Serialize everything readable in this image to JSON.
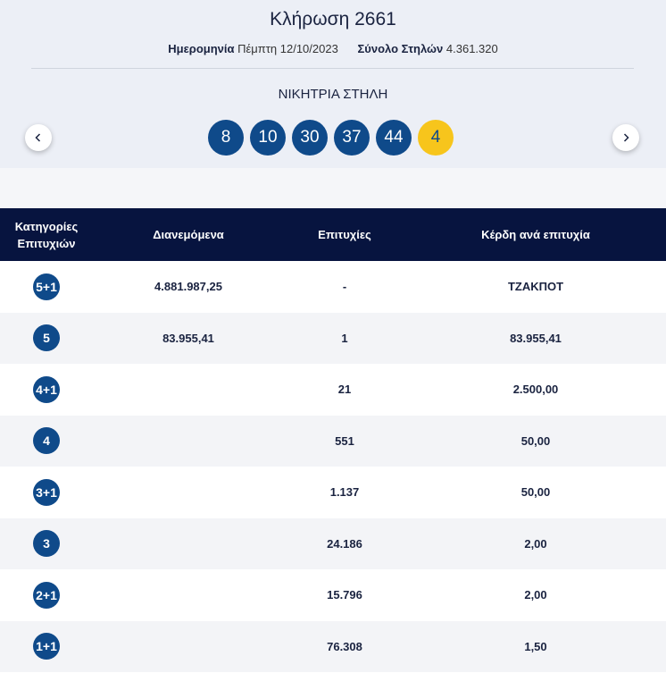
{
  "header": {
    "title": "Κλήρωση 2661",
    "date_label": "Ημερομηνία",
    "date": "Πέμπτη 12/10/2023",
    "columns_label": "Σύνολο Στηλών",
    "columns": "4.361.320"
  },
  "winning_column": {
    "title": "ΝΙΚΗΤΡΙΑ ΣΤΗΛΗ",
    "numbers": [
      8,
      10,
      30,
      37,
      44
    ],
    "bonus": 4
  },
  "table": {
    "headers": [
      "Κατηγορίες Επιτυχιών",
      "Διανεμόμενα",
      "Επιτυχίες",
      "Κέρδη ανά επιτυχία"
    ],
    "rows": [
      {
        "category": "5+1",
        "distributed": "4.881.987,25",
        "winners": "-",
        "prize": "ΤΖΑΚΠΟΤ"
      },
      {
        "category": "5",
        "distributed": "83.955,41",
        "winners": "1",
        "prize": "83.955,41"
      },
      {
        "category": "4+1",
        "winners": "21",
        "prize": "2.500,00"
      },
      {
        "category": "4",
        "winners": "551",
        "prize": "50,00"
      },
      {
        "category": "3+1",
        "winners": "1.137",
        "prize": "50,00"
      },
      {
        "category": "3",
        "winners": "24.186",
        "prize": "2,00"
      },
      {
        "category": "2+1",
        "winners": "15.796",
        "prize": "2,00"
      },
      {
        "category": "1+1",
        "winners": "76.308",
        "prize": "1,50"
      }
    ]
  }
}
